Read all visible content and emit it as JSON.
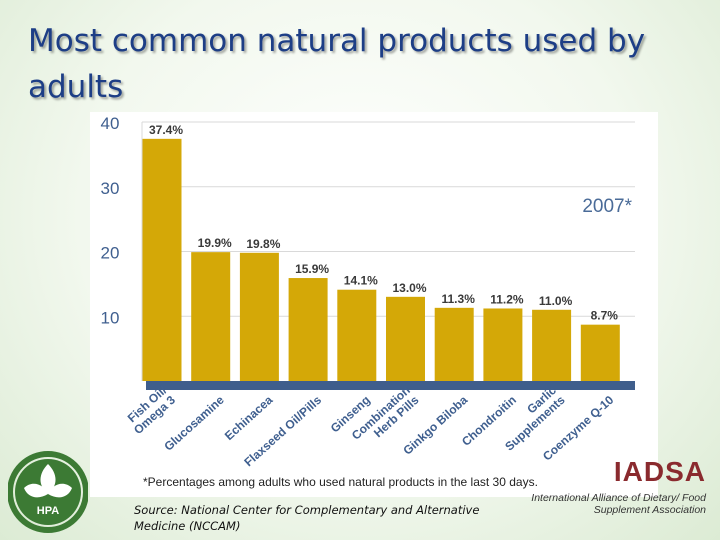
{
  "slide": {
    "title": "Most common natural products used by adults",
    "source": "Source:  National Center for Complementary and Alternative Medicine (NCCAM)"
  },
  "logos": {
    "left_text": "HPA",
    "right_acronym": "IADSA",
    "right_name": "International Alliance of Dietary/ Food Supplement Association"
  },
  "colors": {
    "title": "#1d3e86",
    "bar": "#d4a807",
    "baseline": "#3f5e8c",
    "axis_text": "#3f5f8f",
    "year_text": "#4a6b98",
    "logo_green": "#3c7a34"
  },
  "chart_data": {
    "type": "bar",
    "year_label": "2007*",
    "footnote": "*Percentages among adults who used natural products in the last 30 days.",
    "categories": [
      "Fish Oil/ Omega 3",
      "Glucosamine",
      "Echinacea",
      "Flaxseed Oil/Pills",
      "Ginseng",
      "Combination Herb Pills",
      "Ginkgo Biloba",
      "Chondroitin",
      "Garlic Supplements",
      "Coenzyme Q-10"
    ],
    "category_lines": [
      [
        "Fish Oil/",
        "Omega 3"
      ],
      [
        "Glucosamine"
      ],
      [
        "Echinacea"
      ],
      [
        "Flaxseed Oil/Pills"
      ],
      [
        "Ginseng"
      ],
      [
        "Combination",
        "Herb Pills"
      ],
      [
        "Ginkgo Biloba"
      ],
      [
        "Chondroitin"
      ],
      [
        "Garlic",
        "Supplements"
      ],
      [
        "Coenzyme Q-10"
      ]
    ],
    "values": [
      37.4,
      19.9,
      19.8,
      15.9,
      14.1,
      13.0,
      11.3,
      11.2,
      11.0,
      8.7
    ],
    "value_labels": [
      "37.4%",
      "19.9%",
      "19.8%",
      "15.9%",
      "14.1%",
      "13.0%",
      "11.3%",
      "11.2%",
      "11.0%",
      "8.7%"
    ],
    "yticks": [
      10,
      20,
      30,
      40
    ],
    "ylim": [
      0,
      40
    ],
    "grid": true
  }
}
